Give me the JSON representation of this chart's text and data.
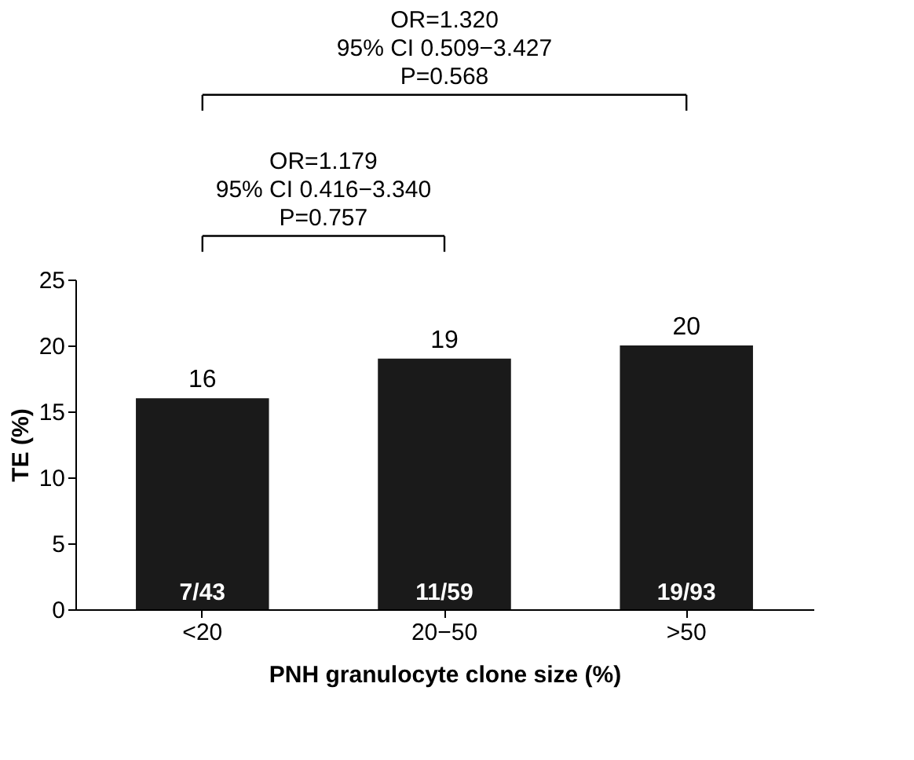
{
  "chart_data": {
    "type": "bar",
    "categories": [
      "<20",
      "20−50",
      ">50"
    ],
    "values": [
      16,
      19,
      20
    ],
    "color": "#1a1a1a",
    "data_labels": true,
    "ylim": [
      0,
      25
    ],
    "yticks": [
      0,
      5,
      10,
      15,
      20,
      25
    ],
    "xlabel": "PNH granulocyte clone size (%)",
    "ylabel": "TE (%)",
    "grid": false,
    "annotations": [
      {
        "text": "7/43",
        "x": "<20",
        "y": 0
      },
      {
        "text": "11/59",
        "x": "20−50",
        "y": 0
      },
      {
        "text": "19/93",
        "x": ">50",
        "y": 0
      },
      "OR=1.179\n95% CI 0.416−3.340\nP=0.757",
      "OR=1.320\n95% CI 0.509−3.427\nP=0.568"
    ]
  }
}
